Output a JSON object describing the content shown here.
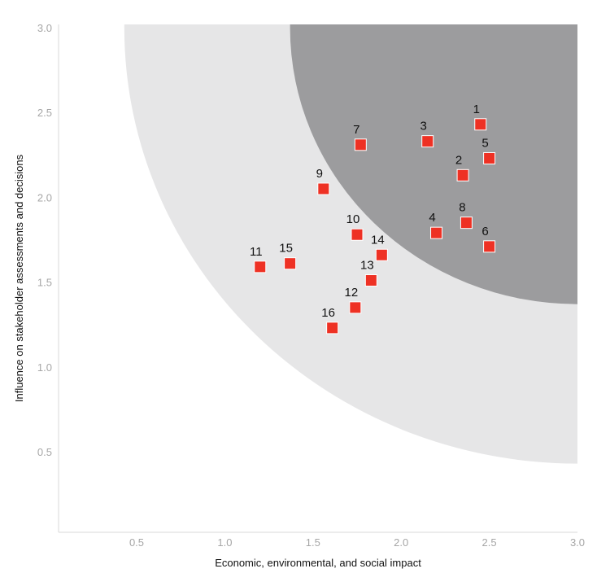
{
  "chart_data": {
    "type": "scatter",
    "xlabel": "Economic, environmental, and social impact",
    "ylabel": "Influence on stakeholder assessments and decisions",
    "xlim": [
      0,
      3.0
    ],
    "ylim": [
      0,
      3.0
    ],
    "x_ticks": [
      "0.5",
      "1.0",
      "1.5",
      "2.0",
      "2.5",
      "3.0"
    ],
    "y_ticks": [
      "0.5",
      "1.0",
      "1.5",
      "2.0",
      "2.5",
      "3.0"
    ],
    "grid": false,
    "zones": [
      {
        "name": "outer",
        "center": [
          3.0,
          3.0
        ],
        "radius": 2.57,
        "color": "#e6e6e7"
      },
      {
        "name": "inner",
        "center": [
          3.0,
          3.0
        ],
        "radius": 1.63,
        "color": "#9c9c9e"
      }
    ],
    "marker_color": "#ee3124",
    "points": [
      {
        "label": "1",
        "x": 2.45,
        "y": 2.43
      },
      {
        "label": "2",
        "x": 2.35,
        "y": 2.13
      },
      {
        "label": "3",
        "x": 2.15,
        "y": 2.33
      },
      {
        "label": "4",
        "x": 2.2,
        "y": 1.79
      },
      {
        "label": "5",
        "x": 2.5,
        "y": 2.23
      },
      {
        "label": "6",
        "x": 2.5,
        "y": 1.71
      },
      {
        "label": "7",
        "x": 1.77,
        "y": 2.31
      },
      {
        "label": "8",
        "x": 2.37,
        "y": 1.85
      },
      {
        "label": "9",
        "x": 1.56,
        "y": 2.05
      },
      {
        "label": "10",
        "x": 1.75,
        "y": 1.78
      },
      {
        "label": "11",
        "x": 1.2,
        "y": 1.59
      },
      {
        "label": "12",
        "x": 1.74,
        "y": 1.35
      },
      {
        "label": "13",
        "x": 1.83,
        "y": 1.51
      },
      {
        "label": "14",
        "x": 1.89,
        "y": 1.66
      },
      {
        "label": "15",
        "x": 1.37,
        "y": 1.61
      },
      {
        "label": "16",
        "x": 1.61,
        "y": 1.23
      }
    ]
  }
}
